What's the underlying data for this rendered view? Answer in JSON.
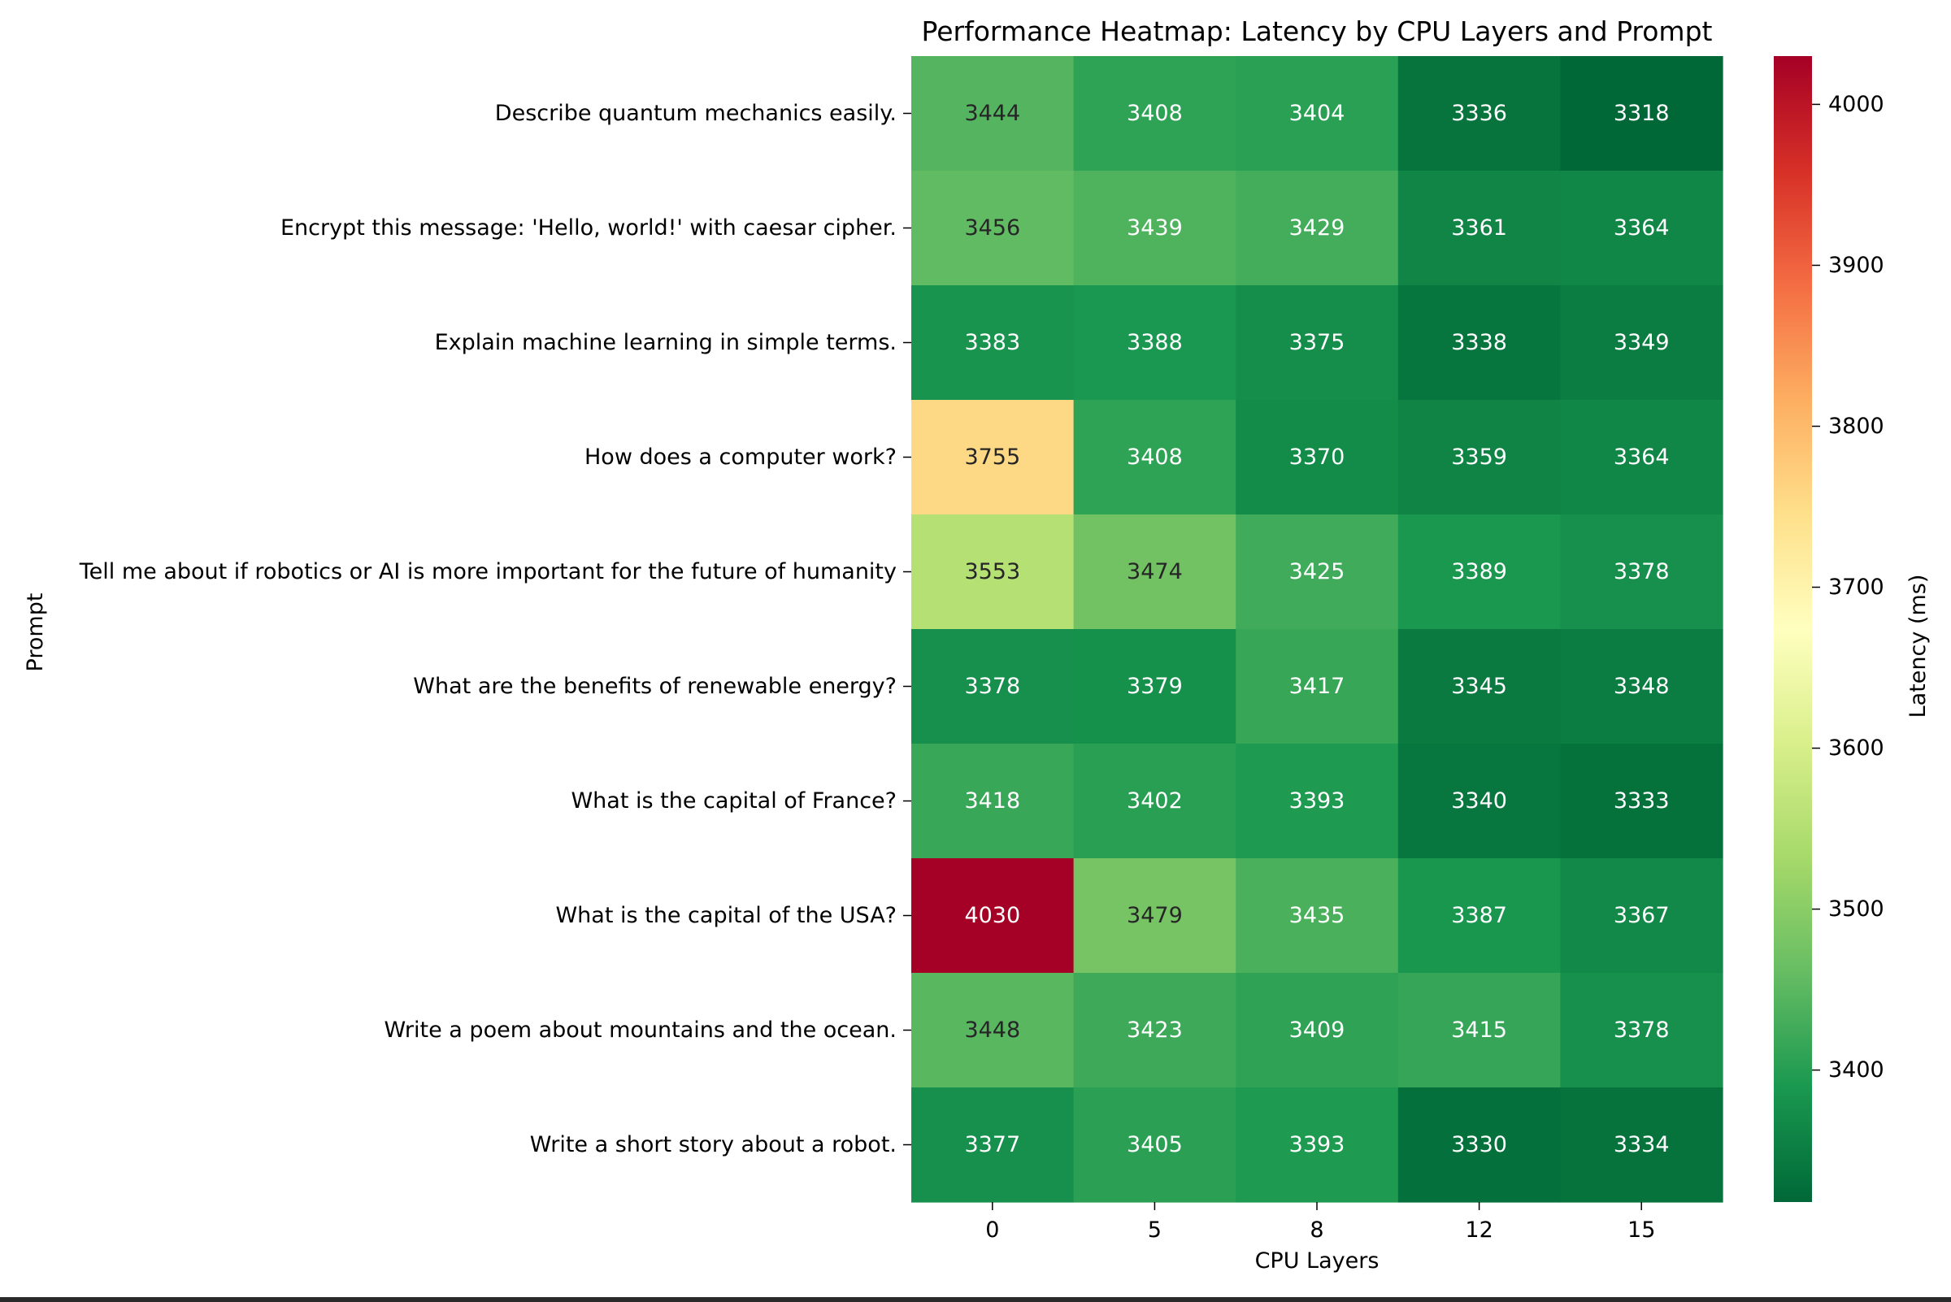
{
  "chart_data": {
    "type": "heatmap",
    "title": "Performance Heatmap: Latency by CPU Layers and Prompt",
    "xlabel": "CPU Layers",
    "ylabel": "Prompt",
    "x": [
      "0",
      "5",
      "8",
      "12",
      "15"
    ],
    "y": [
      "Describe quantum mechanics easily.",
      "Encrypt this message: 'Hello, world!' with caesar cipher.",
      "Explain machine learning in simple terms.",
      "How does a computer work?",
      "Tell me about if robotics or AI is more important for the future of humanity",
      "What are the benefits of renewable energy?",
      "What is the capital of France?",
      "What is the capital of the USA?",
      "Write a poem about mountains and the ocean.",
      "Write a short story about a robot."
    ],
    "values": [
      [
        3444,
        3408,
        3404,
        3336,
        3318
      ],
      [
        3456,
        3439,
        3429,
        3361,
        3364
      ],
      [
        3383,
        3388,
        3375,
        3338,
        3349
      ],
      [
        3755,
        3408,
        3370,
        3359,
        3364
      ],
      [
        3553,
        3474,
        3425,
        3389,
        3378
      ],
      [
        3378,
        3379,
        3417,
        3345,
        3348
      ],
      [
        3418,
        3402,
        3393,
        3340,
        3333
      ],
      [
        4030,
        3479,
        3435,
        3387,
        3367
      ],
      [
        3448,
        3423,
        3409,
        3415,
        3378
      ],
      [
        3377,
        3405,
        3393,
        3330,
        3334
      ]
    ],
    "colorbar": {
      "label": "Latency (ms)",
      "ticks": [
        3400,
        3500,
        3600,
        3700,
        3800,
        3900,
        4000
      ],
      "range": [
        3318,
        4030
      ],
      "colormap": "RdYlGn_r",
      "colors": [
        "#006837",
        "#1a9850",
        "#66bd63",
        "#a6d96a",
        "#d9ef8b",
        "#ffffbf",
        "#fee08b",
        "#fdae61",
        "#f46d43",
        "#d73027",
        "#a50026"
      ]
    },
    "grid": false,
    "legend": "colorbar-right"
  }
}
